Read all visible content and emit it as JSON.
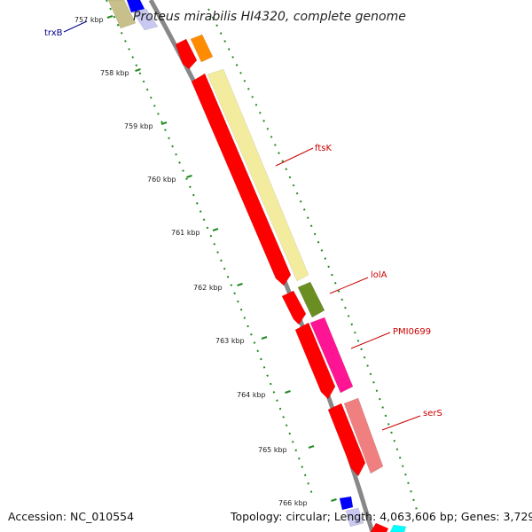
{
  "title": "Proteus mirabilis HI4320, complete genome",
  "footer": {
    "accession": "Accession: NC_010554",
    "summary": "Topology: circular; Length: 4,063,606 bp; Genes: 3,729"
  },
  "ticks": [
    "757 kbp",
    "758 kbp",
    "759 kbp",
    "760 kbp",
    "761 kbp",
    "762 kbp",
    "763 kbp",
    "764 kbp",
    "765 kbp",
    "766 kbp"
  ],
  "gene_labels": [
    {
      "name": "trxB",
      "color": "#00008b"
    },
    {
      "name": "ftsK",
      "color": "#cc0000"
    },
    {
      "name": "lolA",
      "color": "#cc0000"
    },
    {
      "name": "PMI0699",
      "color": "#cc0000"
    },
    {
      "name": "serS",
      "color": "#cc0000"
    }
  ],
  "feature_colors": {
    "cds_red": "#ff0000",
    "ftsK_yellow": "#f3ec9f",
    "orange": "#ff8c00",
    "olive": "#6b8e23",
    "magenta": "#ff1493",
    "salmon": "#f08080",
    "khaki": "#c8c08a",
    "blue": "#0000ff",
    "cyan": "#00ffff",
    "backbone": "#888888",
    "tick_green": "#228b22"
  }
}
